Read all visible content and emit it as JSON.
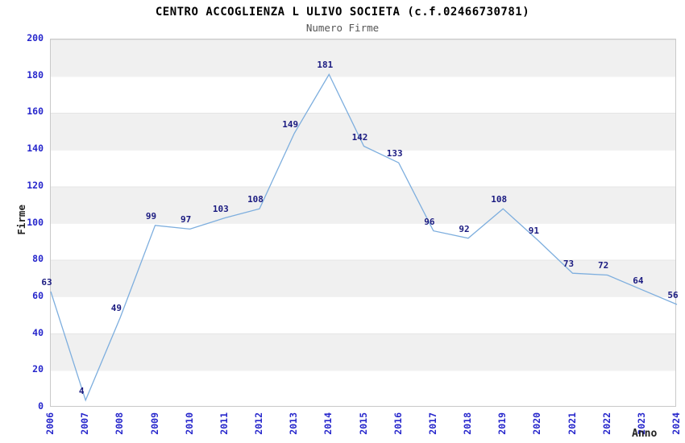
{
  "chart_data": {
    "type": "line",
    "title": "CENTRO ACCOGLIENZA L ULIVO SOCIETA (c.f.02466730781)",
    "subtitle": "Numero Firme",
    "xlabel": "Anno",
    "ylabel": "Firme",
    "categories": [
      "2006",
      "2007",
      "2008",
      "2009",
      "2010",
      "2011",
      "2012",
      "2013",
      "2014",
      "2015",
      "2016",
      "2017",
      "2018",
      "2019",
      "2020",
      "2021",
      "2022",
      "2023",
      "2024"
    ],
    "values": [
      63,
      4,
      49,
      99,
      97,
      103,
      108,
      149,
      181,
      142,
      133,
      96,
      92,
      108,
      91,
      73,
      72,
      64,
      56
    ],
    "ylim": [
      0,
      200
    ],
    "ytick_step": 20,
    "grid": "alternating-horizontal-bands",
    "legend": "none",
    "colors": {
      "line": "#7daede",
      "tick_labels": "#2727cc",
      "value_labels": "#1a1a80",
      "band_fill": "#f0f0f0",
      "plot_border": "#c9c9c9",
      "title": "#000000",
      "subtitle": "#555555",
      "axis_titles": "#222222"
    }
  }
}
